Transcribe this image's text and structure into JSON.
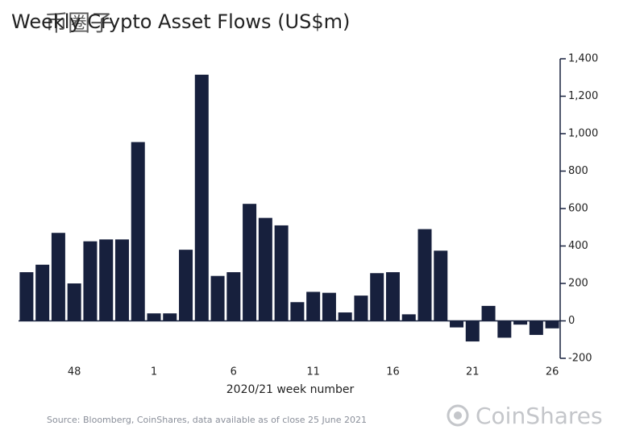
{
  "chart_data": {
    "type": "bar",
    "title": "Weekly Crypto Asset Flows (US$m)",
    "watermark": "币圈子",
    "x_label": "2020/21 week number",
    "source": "Source: Bloomberg, CoinShares, data available as of close 25 June 2021",
    "logo": "CoinShares",
    "categories": [
      null,
      null,
      null,
      "48",
      null,
      null,
      null,
      null,
      "1",
      null,
      null,
      null,
      null,
      "6",
      null,
      null,
      null,
      null,
      "11",
      null,
      null,
      null,
      null,
      "16",
      null,
      null,
      null,
      null,
      "21",
      null,
      null,
      null,
      null,
      "26"
    ],
    "values": [
      260,
      300,
      470,
      200,
      425,
      435,
      435,
      955,
      40,
      40,
      380,
      1315,
      240,
      260,
      625,
      550,
      510,
      100,
      155,
      150,
      45,
      135,
      255,
      260,
      35,
      490,
      375,
      -35,
      -110,
      80,
      -90,
      -20,
      -75,
      -40
    ],
    "color": "#17203d",
    "ylim": [
      -200,
      1400
    ],
    "yticks": [
      {
        "value": 1400,
        "label": "1,400"
      },
      {
        "value": 1200,
        "label": "1,200"
      },
      {
        "value": 1000,
        "label": "1,000"
      },
      800,
      600,
      400,
      200,
      0,
      -200
    ],
    "grid": false
  }
}
